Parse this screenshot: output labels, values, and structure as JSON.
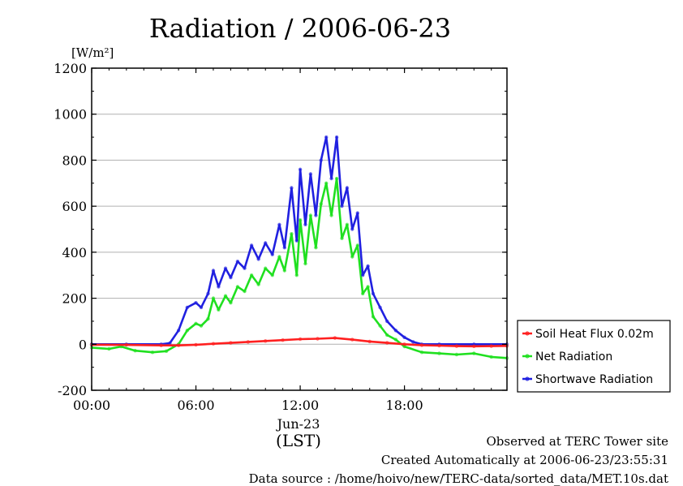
{
  "chart_data": {
    "type": "line",
    "title": "Radiation / 2006-06-23",
    "ylabel_unit": "[W/m²]",
    "xlabel_date": "Jun-23",
    "xlabel_zone": "(LST)",
    "xlim": [
      0,
      23.9
    ],
    "ylim": [
      -200,
      1200
    ],
    "yticks": [
      -200,
      0,
      200,
      400,
      600,
      800,
      1000,
      1200
    ],
    "ytick_labels": [
      "-200",
      "0",
      "200",
      "400",
      "600",
      "800",
      "1000",
      "1200"
    ],
    "xticks": [
      0,
      6,
      12,
      18
    ],
    "xtick_labels": [
      "00:00",
      "06:00",
      "12:00",
      "18:00"
    ],
    "grid": true,
    "legend_position": "right-outside",
    "series": [
      {
        "name": "Soil Heat Flux 0.02m",
        "color": "#ff2020",
        "points": [
          [
            0,
            -2
          ],
          [
            2,
            -3
          ],
          [
            4,
            -5
          ],
          [
            5,
            -5
          ],
          [
            6,
            -2
          ],
          [
            7,
            2
          ],
          [
            8,
            6
          ],
          [
            9,
            10
          ],
          [
            10,
            14
          ],
          [
            11,
            18
          ],
          [
            12,
            22
          ],
          [
            13,
            24
          ],
          [
            14,
            27
          ],
          [
            15,
            20
          ],
          [
            16,
            12
          ],
          [
            17,
            6
          ],
          [
            18,
            0
          ],
          [
            19,
            -4
          ],
          [
            20,
            -6
          ],
          [
            21,
            -8
          ],
          [
            22,
            -9
          ],
          [
            23,
            -8
          ],
          [
            23.9,
            -7
          ]
        ]
      },
      {
        "name": "Net Radiation",
        "color": "#20e020",
        "points": [
          [
            0,
            -15
          ],
          [
            1,
            -20
          ],
          [
            1.7,
            -10
          ],
          [
            2.5,
            -28
          ],
          [
            3.5,
            -35
          ],
          [
            4.3,
            -30
          ],
          [
            5,
            0
          ],
          [
            5.5,
            60
          ],
          [
            6,
            90
          ],
          [
            6.3,
            80
          ],
          [
            6.7,
            110
          ],
          [
            7,
            200
          ],
          [
            7.3,
            150
          ],
          [
            7.7,
            210
          ],
          [
            8,
            180
          ],
          [
            8.4,
            250
          ],
          [
            8.8,
            230
          ],
          [
            9.2,
            300
          ],
          [
            9.6,
            260
          ],
          [
            10,
            330
          ],
          [
            10.4,
            300
          ],
          [
            10.8,
            380
          ],
          [
            11.1,
            320
          ],
          [
            11.5,
            480
          ],
          [
            11.8,
            300
          ],
          [
            12,
            540
          ],
          [
            12.3,
            350
          ],
          [
            12.6,
            560
          ],
          [
            12.9,
            420
          ],
          [
            13.2,
            610
          ],
          [
            13.5,
            700
          ],
          [
            13.8,
            560
          ],
          [
            14.1,
            720
          ],
          [
            14.4,
            460
          ],
          [
            14.7,
            520
          ],
          [
            15,
            380
          ],
          [
            15.3,
            430
          ],
          [
            15.6,
            220
          ],
          [
            15.9,
            250
          ],
          [
            16.2,
            120
          ],
          [
            16.6,
            80
          ],
          [
            17,
            40
          ],
          [
            17.5,
            20
          ],
          [
            18,
            -10
          ],
          [
            19,
            -35
          ],
          [
            20,
            -40
          ],
          [
            21,
            -45
          ],
          [
            22,
            -40
          ],
          [
            23,
            -55
          ],
          [
            23.9,
            -60
          ]
        ]
      },
      {
        "name": "Shortwave Radiation",
        "color": "#2020e0",
        "points": [
          [
            0,
            0
          ],
          [
            2,
            0
          ],
          [
            4,
            0
          ],
          [
            4.5,
            5
          ],
          [
            5,
            60
          ],
          [
            5.5,
            160
          ],
          [
            6,
            180
          ],
          [
            6.3,
            160
          ],
          [
            6.7,
            220
          ],
          [
            7,
            320
          ],
          [
            7.3,
            250
          ],
          [
            7.7,
            330
          ],
          [
            8,
            290
          ],
          [
            8.4,
            360
          ],
          [
            8.8,
            330
          ],
          [
            9.2,
            430
          ],
          [
            9.6,
            370
          ],
          [
            10,
            440
          ],
          [
            10.4,
            390
          ],
          [
            10.8,
            520
          ],
          [
            11.1,
            420
          ],
          [
            11.5,
            680
          ],
          [
            11.8,
            450
          ],
          [
            12,
            760
          ],
          [
            12.3,
            520
          ],
          [
            12.6,
            740
          ],
          [
            12.9,
            560
          ],
          [
            13.2,
            800
          ],
          [
            13.5,
            900
          ],
          [
            13.8,
            720
          ],
          [
            14.1,
            900
          ],
          [
            14.4,
            600
          ],
          [
            14.7,
            680
          ],
          [
            15,
            500
          ],
          [
            15.3,
            570
          ],
          [
            15.6,
            300
          ],
          [
            15.9,
            340
          ],
          [
            16.2,
            220
          ],
          [
            16.6,
            160
          ],
          [
            17,
            100
          ],
          [
            17.5,
            60
          ],
          [
            18,
            30
          ],
          [
            18.5,
            10
          ],
          [
            19,
            0
          ],
          [
            20,
            0
          ],
          [
            22,
            0
          ],
          [
            23.9,
            0
          ]
        ]
      }
    ]
  },
  "footer": {
    "observed": "Observed at TERC Tower site",
    "created": "Created Automatically at 2006-06-23/23:55:31",
    "source": "Data source : /home/hoivo/new/TERC-data/sorted_data/MET.10s.dat"
  }
}
